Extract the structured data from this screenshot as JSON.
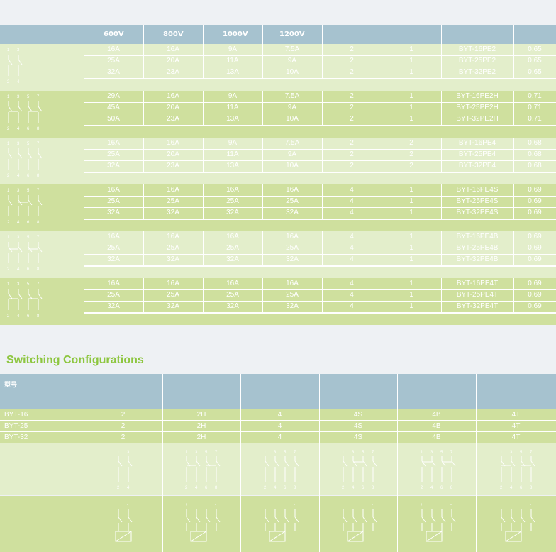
{
  "colors": {
    "header": "#a6c2cf",
    "band_light": "#e3eecb",
    "band_dark": "#cfe09e",
    "row_line": "#ffffff",
    "title": "#8dc63f",
    "text": "#ffffff"
  },
  "voltage_headers": [
    "600V",
    "800V",
    "1000V",
    "1200V"
  ],
  "groups": [
    {
      "terminals_top": [
        "1",
        "3"
      ],
      "terminals_bottom": [
        "2",
        "4"
      ],
      "rows": [
        [
          "16A",
          "16A",
          "9A",
          "7.5A",
          "2",
          "1",
          "BYT-16PE2",
          "0.65"
        ],
        [
          "25A",
          "20A",
          "11A",
          "9A",
          "2",
          "1",
          "BYT-25PE2",
          "0.65"
        ],
        [
          "32A",
          "23A",
          "13A",
          "10A",
          "2",
          "1",
          "BYT-32PE2",
          "0.65"
        ]
      ]
    },
    {
      "terminals_top": [
        "1",
        "3",
        "5",
        "7"
      ],
      "terminals_bottom": [
        "2",
        "4",
        "6",
        "8"
      ],
      "rows": [
        [
          "29A",
          "16A",
          "9A",
          "7.5A",
          "2",
          "1",
          "BYT-16PE2H",
          "0.71"
        ],
        [
          "45A",
          "20A",
          "11A",
          "9A",
          "2",
          "1",
          "BYT-25PE2H",
          "0.71"
        ],
        [
          "50A",
          "23A",
          "13A",
          "10A",
          "2",
          "1",
          "BYT-32PE2H",
          "0.71"
        ]
      ]
    },
    {
      "terminals_top": [
        "1",
        "3",
        "5",
        "7"
      ],
      "terminals_bottom": [
        "2",
        "4",
        "6",
        "8"
      ],
      "rows": [
        [
          "16A",
          "16A",
          "9A",
          "7.5A",
          "2",
          "2",
          "BYT-16PE4",
          "0.68"
        ],
        [
          "25A",
          "20A",
          "11A",
          "9A",
          "2",
          "2",
          "BYT-25PE4",
          "0.68"
        ],
        [
          "32A",
          "23A",
          "13A",
          "10A",
          "2",
          "2",
          "BYT-32PE4",
          "0.68"
        ]
      ]
    },
    {
      "terminals_top": [
        "1",
        "3",
        "5",
        "7"
      ],
      "terminals_bottom": [
        "2",
        "4",
        "6",
        "8"
      ],
      "rows": [
        [
          "16A",
          "16A",
          "16A",
          "16A",
          "4",
          "1",
          "BYT-16PE4S",
          "0.69"
        ],
        [
          "25A",
          "25A",
          "25A",
          "25A",
          "4",
          "1",
          "BYT-25PE4S",
          "0.69"
        ],
        [
          "32A",
          "32A",
          "32A",
          "32A",
          "4",
          "1",
          "BYT-32PE4S",
          "0.69"
        ]
      ]
    },
    {
      "terminals_top": [
        "1",
        "3",
        "5",
        "7"
      ],
      "terminals_bottom": [
        "2",
        "4",
        "6",
        "8"
      ],
      "rows": [
        [
          "16A",
          "16A",
          "16A",
          "16A",
          "4",
          "1",
          "BYT-16PE4B",
          "0.69"
        ],
        [
          "25A",
          "25A",
          "25A",
          "25A",
          "4",
          "1",
          "BYT-25PE4B",
          "0.69"
        ],
        [
          "32A",
          "32A",
          "32A",
          "32A",
          "4",
          "1",
          "BYT-32PE4B",
          "0.69"
        ]
      ]
    },
    {
      "terminals_top": [
        "1",
        "3",
        "5",
        "7"
      ],
      "terminals_bottom": [
        "2",
        "4",
        "6",
        "8"
      ],
      "rows": [
        [
          "16A",
          "16A",
          "16A",
          "16A",
          "4",
          "1",
          "BYT-16PE4T",
          "0.69"
        ],
        [
          "25A",
          "25A",
          "25A",
          "25A",
          "4",
          "1",
          "BYT-25PE4T",
          "0.69"
        ],
        [
          "32A",
          "32A",
          "32A",
          "32A",
          "4",
          "1",
          "BYT-32PE4T",
          "0.69"
        ]
      ]
    }
  ],
  "section_title": "Switching Configurations",
  "config_table": {
    "header_label": "型号",
    "rows": [
      {
        "model": "BYT-16",
        "configs": [
          "2",
          "2H",
          "4",
          "4S",
          "4B",
          "4T"
        ]
      },
      {
        "model": "BYT-25",
        "configs": [
          "2",
          "2H",
          "4",
          "4S",
          "4B",
          "4T"
        ]
      },
      {
        "model": "BYT-32",
        "configs": [
          "2",
          "2H",
          "4",
          "4S",
          "4B",
          "4T"
        ]
      }
    ],
    "diagram_terminals": [
      {
        "top": [
          "1",
          "3"
        ],
        "bottom": [
          "2",
          "4"
        ]
      },
      {
        "top": [
          "1",
          "3",
          "5",
          "7"
        ],
        "bottom": [
          "2",
          "4",
          "6",
          "8"
        ]
      },
      {
        "top": [
          "1",
          "3",
          "5",
          "7"
        ],
        "bottom": [
          "2",
          "4",
          "6",
          "8"
        ]
      },
      {
        "top": [
          "1",
          "3",
          "5",
          "7"
        ],
        "bottom": [
          "2",
          "4",
          "6",
          "8"
        ]
      },
      {
        "top": [
          "1",
          "3",
          "5",
          "7"
        ],
        "bottom": [
          "2",
          "4",
          "6",
          "8"
        ]
      },
      {
        "top": [
          "1",
          "3",
          "5",
          "7"
        ],
        "bottom": [
          "2",
          "4",
          "6",
          "8"
        ]
      }
    ],
    "polarity": {
      "plus": "+",
      "minus": "-"
    }
  }
}
